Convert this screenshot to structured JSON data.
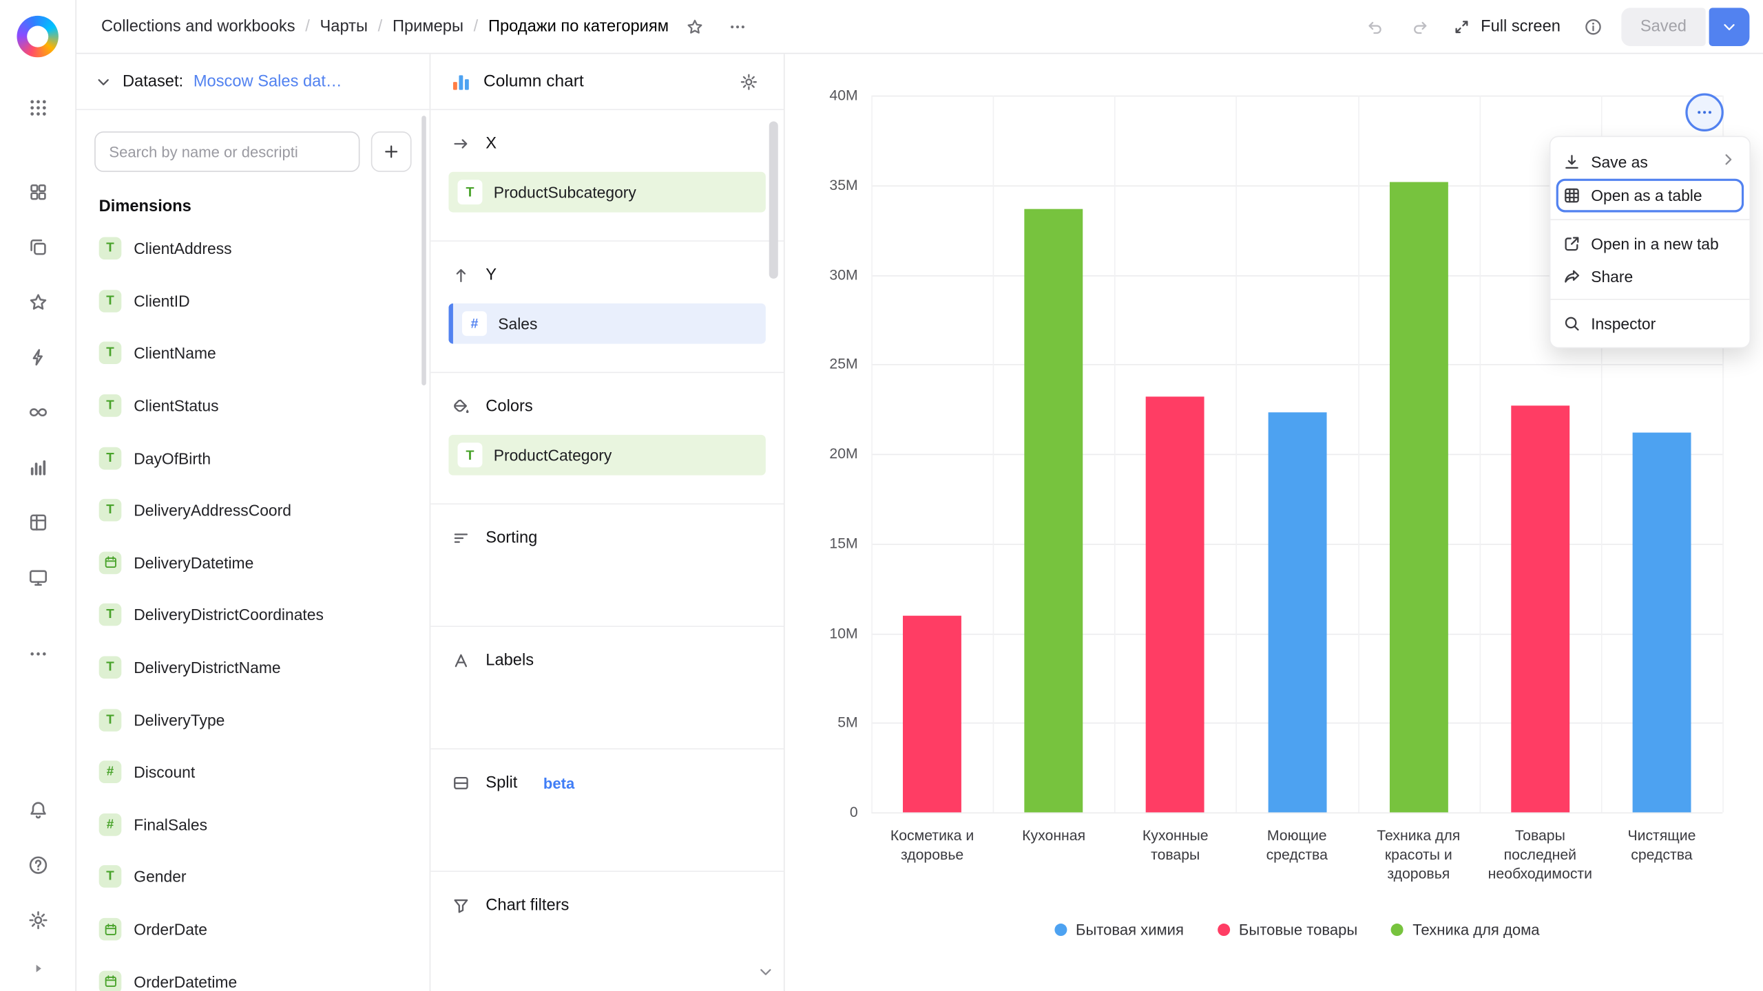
{
  "colors": {
    "accent": "#5282f0",
    "bar_blue": "#4DA2F1",
    "bar_pink": "#FF3D64",
    "bar_green": "#77C33E",
    "field_icon_green": "#49a32b"
  },
  "topbar": {
    "breadcrumbs": [
      "Collections and workbooks",
      "Чарты",
      "Примеры",
      "Продажи по категориям"
    ],
    "icons": [
      "star",
      "ellipsis",
      "undo",
      "redo",
      "fullscreen",
      "info",
      "chevron-down"
    ],
    "full_screen_label": "Full screen",
    "saved_button_label": "Saved"
  },
  "rail": {
    "nav": [
      "squares",
      "collections",
      "favorites",
      "editor",
      "connections",
      "charts",
      "datasets",
      "monitor",
      "more"
    ],
    "bottom": [
      "notifications",
      "help",
      "settings"
    ]
  },
  "dataset_panel": {
    "label": "Dataset:",
    "dataset_name": "Moscow Sales dat…",
    "search_placeholder": "Search by name or descripti",
    "dimensions_title": "Dimensions",
    "fields": [
      {
        "name": "ClientAddress",
        "type": "text"
      },
      {
        "name": "ClientID",
        "type": "text"
      },
      {
        "name": "ClientName",
        "type": "text"
      },
      {
        "name": "ClientStatus",
        "type": "text"
      },
      {
        "name": "DayOfBirth",
        "type": "text"
      },
      {
        "name": "DeliveryAddressCoord",
        "type": "text"
      },
      {
        "name": "DeliveryDatetime",
        "type": "date"
      },
      {
        "name": "DeliveryDistrictCoordinates",
        "type": "text"
      },
      {
        "name": "DeliveryDistrictName",
        "type": "text"
      },
      {
        "name": "DeliveryType",
        "type": "text"
      },
      {
        "name": "Discount",
        "type": "number"
      },
      {
        "name": "FinalSales",
        "type": "number"
      },
      {
        "name": "Gender",
        "type": "text"
      },
      {
        "name": "OrderDate",
        "type": "date"
      },
      {
        "name": "OrderDatetime",
        "type": "date"
      }
    ]
  },
  "config_panel": {
    "title": "Column chart",
    "x_label": "X",
    "x_field": "ProductSubcategory",
    "y_label": "Y",
    "y_field": "Sales",
    "colors_label": "Colors",
    "colors_field": "ProductCategory",
    "sorting_label": "Sorting",
    "labels_label": "Labels",
    "split_label": "Split",
    "split_badge": "beta",
    "filters_label": "Chart filters"
  },
  "chart_menu": {
    "items": [
      {
        "icon": "download",
        "label": "Save as",
        "submenu": true
      },
      {
        "icon": "table-grid",
        "label": "Open as a table",
        "focused": true
      },
      {
        "divider": true
      },
      {
        "icon": "external-link",
        "label": "Open in a new tab"
      },
      {
        "icon": "share",
        "label": "Share"
      },
      {
        "divider": true
      },
      {
        "icon": "magnifier",
        "label": "Inspector"
      }
    ]
  },
  "chart_data": {
    "type": "bar",
    "title": "",
    "xlabel": "",
    "ylabel": "",
    "categories": [
      "Косметика и здоровье",
      "Кухонная",
      "Кухонные товары",
      "Моющие средства",
      "Техника для красоты и здоровья",
      "Товары последней необходимости",
      "Чистящие средства"
    ],
    "values": [
      11.0,
      33.7,
      23.2,
      22.3,
      35.2,
      22.7,
      21.2
    ],
    "value_unit": "M (millions)",
    "groups": [
      "Бытовые товары",
      "Техника для дома",
      "Бытовые товары",
      "Бытовая химия",
      "Техника для дома",
      "Бытовые товары",
      "Бытовая химия"
    ],
    "group_colors": {
      "Бытовая химия": "#4DA2F1",
      "Бытовые товары": "#FF3D64",
      "Техника для дома": "#77C33E"
    },
    "ylim": [
      0,
      40
    ],
    "yticks": [
      "0",
      "5M",
      "10M",
      "15M",
      "20M",
      "25M",
      "30M",
      "35M",
      "40M"
    ],
    "grid": true,
    "legend_position": "bottom",
    "legend": [
      {
        "label": "Бытовая химия",
        "color": "#4DA2F1"
      },
      {
        "label": "Бытовые товары",
        "color": "#FF3D64"
      },
      {
        "label": "Техника для дома",
        "color": "#77C33E"
      }
    ]
  }
}
